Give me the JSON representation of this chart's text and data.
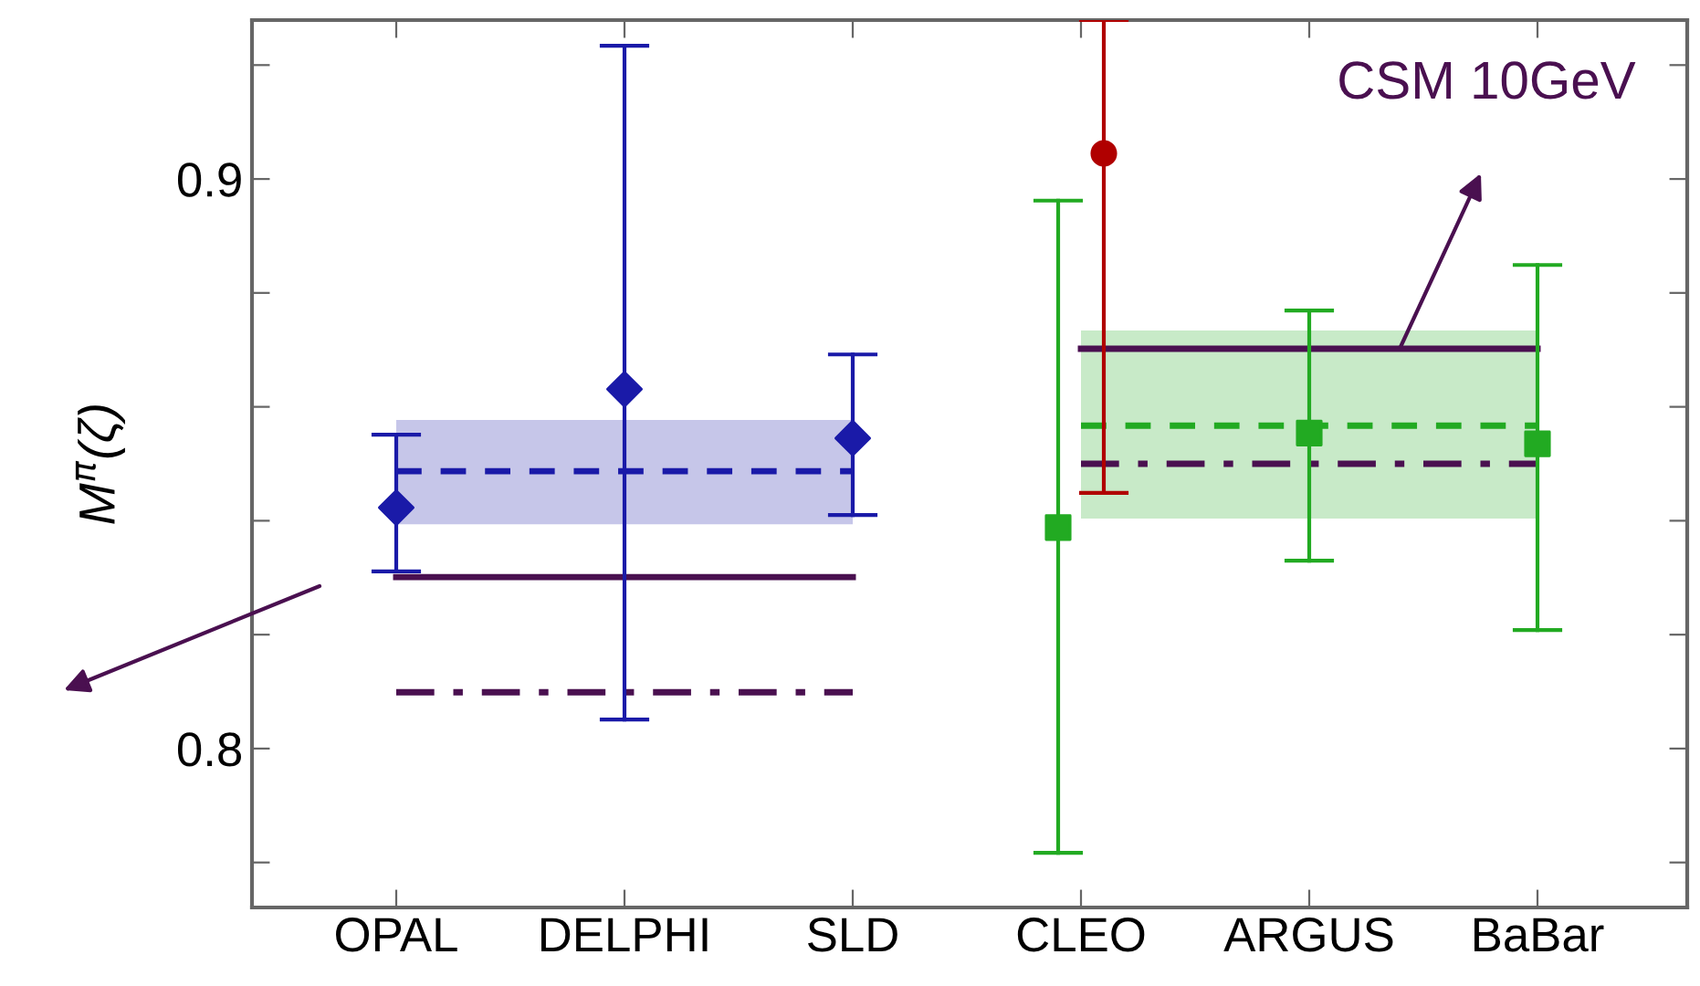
{
  "chart_data": {
    "type": "scatter",
    "ylabel": "M$^{π}$(ζ)",
    "categories": [
      "OPAL",
      "DELPHI",
      "SLD",
      "CLEO",
      "ARGUS",
      "BaBar"
    ],
    "ylim": [
      0.7721,
      0.9279
    ],
    "yticks": [
      {
        "value": 0.78,
        "label": null
      },
      0.8,
      {
        "value": 0.82,
        "label": null
      },
      {
        "value": 0.84,
        "label": null
      },
      {
        "value": 0.86,
        "label": null
      },
      {
        "value": 0.88,
        "label": null
      },
      0.9,
      {
        "value": 0.92,
        "label": null
      }
    ],
    "grid": false,
    "legend": false,
    "series": [
      {
        "type": "line",
        "color": "#1a1aa8",
        "line_style": "dashed",
        "values": [
          0.8487,
          0.8487,
          0.8487,
          null,
          null,
          null
        ],
        "lower": [
          0.8394,
          0.8394,
          0.8394,
          null,
          null,
          null
        ],
        "upper": [
          0.8577,
          0.8577,
          0.8577,
          null,
          null,
          null
        ]
      },
      {
        "type": "line",
        "color": "#22aa22",
        "line_style": "dashed",
        "values": [
          null,
          null,
          null,
          0.8567,
          0.8567,
          0.8567
        ],
        "lower": [
          null,
          null,
          null,
          0.8404,
          0.8404,
          0.8404
        ],
        "upper": [
          null,
          null,
          null,
          0.8734,
          0.8734,
          0.8734
        ]
      },
      {
        "type": "line",
        "color": "#4a1050",
        "line_style": "solid",
        "values": [
          0.8301,
          0.8301,
          0.8301,
          null,
          null,
          null
        ]
      },
      {
        "type": "line",
        "color": "#4a1050",
        "line_style": "dashdot",
        "values": [
          0.8099,
          0.8099,
          0.8099,
          null,
          null,
          null
        ]
      },
      {
        "type": "line",
        "color": "#4a1050",
        "line_style": "solid",
        "values": [
          null,
          null,
          null,
          0.8702,
          0.8702,
          0.8702
        ]
      },
      {
        "type": "line",
        "color": "#4a1050",
        "line_style": "dashdot",
        "values": [
          null,
          null,
          null,
          0.85,
          0.85,
          0.85
        ]
      },
      {
        "color": "#1a1aa8",
        "marker": "diamond",
        "values": [
          0.8423,
          0.8631,
          0.8545,
          null,
          null,
          null
        ],
        "errors": [
          [
            0.8311,
            0.8551
          ],
          [
            0.8051,
            0.9234
          ],
          [
            0.841,
            0.8692
          ],
          null,
          null,
          null
        ]
      },
      {
        "color": "#22aa22",
        "marker": "square",
        "values": [
          null,
          null,
          null,
          0.8388,
          0.8554,
          0.8535
        ],
        "errors": [
          null,
          null,
          null,
          [
            0.7817,
            0.8962
          ],
          [
            0.833,
            0.8769
          ],
          [
            0.8208,
            0.8849
          ]
        ]
      },
      {
        "color": "#b00000",
        "marker": "circle",
        "values": [
          null,
          null,
          null,
          0.9045,
          null,
          null
        ],
        "errors": [
          null,
          null,
          null,
          [
            0.8449,
            0.9279
          ],
          null,
          null
        ]
      }
    ],
    "annotations": [
      "CSM 10GeV"
    ]
  }
}
